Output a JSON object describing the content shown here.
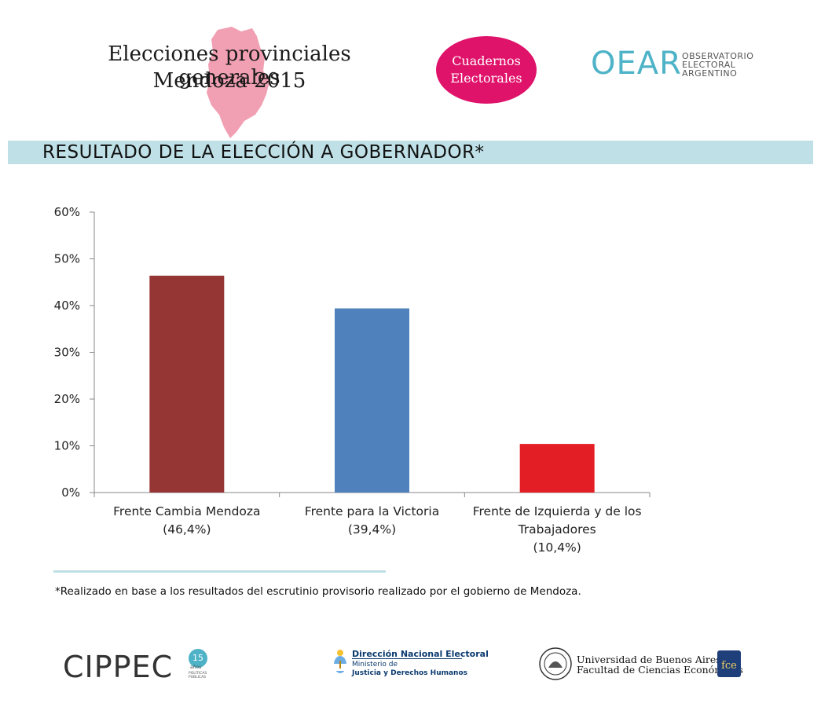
{
  "header": {
    "title_line1": "Elecciones provinciales generales",
    "title_line2": "Mendoza 2015",
    "cuadernos_line1": "Cuadernos",
    "cuadernos_line2": "Electorales",
    "oear_mark": "OEAR",
    "oear_text_line1": "OBSERVATORIO",
    "oear_text_line2": "ELECTORAL",
    "oear_text_line3": "ARGENTINO"
  },
  "banner": {
    "title": "RESULTADO DE LA ELECCIÓN A GOBERNADOR*"
  },
  "chart_data": {
    "type": "bar",
    "title": "RESULTADO DE LA ELECCIÓN A GOBERNADOR*",
    "categories": [
      "Frente Cambia Mendoza",
      "Frente para la Victoria",
      "Frente de Izquierda y de los Trabajadores"
    ],
    "category_label_lines": [
      [
        "Frente Cambia Mendoza",
        "(46,4%)"
      ],
      [
        "Frente para la Victoria",
        "(39,4%)"
      ],
      [
        "Frente de Izquierda y de los",
        "Trabajadores",
        "(10,4%)"
      ]
    ],
    "values": [
      46.4,
      39.4,
      10.4
    ],
    "colors": [
      "#963634",
      "#4f81bd",
      "#e41e25"
    ],
    "ylim": [
      0,
      60
    ],
    "yticks": [
      0,
      10,
      20,
      30,
      40,
      50,
      60
    ],
    "ytick_labels": [
      "0%",
      "10%",
      "20%",
      "30%",
      "40%",
      "50%",
      "60%"
    ],
    "xlabel": "",
    "ylabel": "",
    "grid": false,
    "legend": false
  },
  "footnote": "*Realizado en base a los resultados del escrutinio provisorio realizado por el gobierno de Mendoza.",
  "footer": {
    "cippec": "CIPPEC",
    "cippec_badge": "15",
    "cippec_anos": "años",
    "cippec_sub": "POLÍTICAS PÚBLICAS",
    "dne_title": "Dirección Nacional Electoral",
    "dne_sub1": "Ministerio de",
    "dne_sub2": "Justicia y Derechos Humanos",
    "uba_line1": "Universidad de Buenos Aires",
    "uba_line2": "Facultad de Ciencias Económicas",
    "fce": "fce"
  }
}
